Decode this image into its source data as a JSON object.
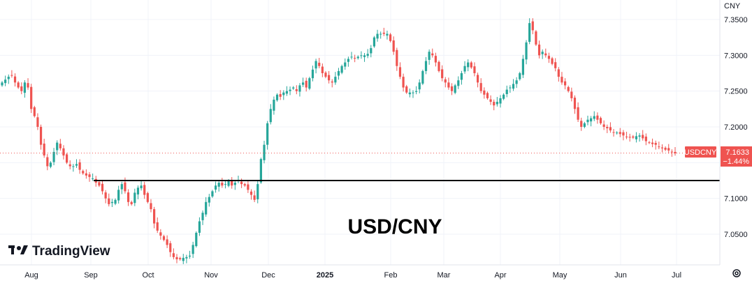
{
  "chart_data": {
    "type": "candlestick",
    "symbol": "USDCNY",
    "title": "USD/CNY",
    "currency": "CNY",
    "last_price": "7.1633",
    "change_pct": "−1.44%",
    "up_color": "#26a69a",
    "down_color": "#ef5350",
    "ylim": [
      7.005,
      7.36
    ],
    "y_ticks": [
      "7.3500",
      "7.3000",
      "7.2500",
      "7.2000",
      "7.1500",
      "7.1000",
      "7.0500"
    ],
    "x_labels": [
      "Aug",
      "Sep",
      "Oct",
      "Nov",
      "Dec",
      "2025",
      "Feb",
      "Mar",
      "Apr",
      "May",
      "Jun",
      "Jul"
    ],
    "x_bold": "2025",
    "horizontal_line": 7.125,
    "close_series": [
      7.262,
      7.266,
      7.27,
      7.272,
      7.262,
      7.255,
      7.25,
      7.262,
      7.255,
      7.225,
      7.215,
      7.2,
      7.175,
      7.16,
      7.145,
      7.15,
      7.165,
      7.178,
      7.17,
      7.16,
      7.15,
      7.145,
      7.145,
      7.148,
      7.14,
      7.135,
      7.132,
      7.13,
      7.128,
      7.122,
      7.118,
      7.11,
      7.1,
      7.092,
      7.095,
      7.098,
      7.112,
      7.12,
      7.11,
      7.095,
      7.092,
      7.108,
      7.115,
      7.118,
      7.105,
      7.095,
      7.085,
      7.065,
      7.055,
      7.048,
      7.042,
      7.035,
      7.025,
      7.018,
      7.015,
      7.015,
      7.017,
      7.018,
      7.02,
      7.035,
      7.052,
      7.068,
      7.08,
      7.095,
      7.102,
      7.11,
      7.118,
      7.122,
      7.118,
      7.12,
      7.125,
      7.118,
      7.122,
      7.125,
      7.12,
      7.118,
      7.112,
      7.105,
      7.098,
      7.12,
      7.155,
      7.175,
      7.205,
      7.225,
      7.238,
      7.245,
      7.242,
      7.248,
      7.25,
      7.252,
      7.255,
      7.25,
      7.258,
      7.262,
      7.255,
      7.268,
      7.28,
      7.292,
      7.285,
      7.275,
      7.27,
      7.265,
      7.262,
      7.27,
      7.278,
      7.285,
      7.29,
      7.295,
      7.298,
      7.296,
      7.298,
      7.3,
      7.3,
      7.302,
      7.31,
      7.325,
      7.33,
      7.33,
      7.33,
      7.33,
      7.32,
      7.305,
      7.285,
      7.27,
      7.255,
      7.248,
      7.248,
      7.248,
      7.25,
      7.262,
      7.278,
      7.292,
      7.305,
      7.3,
      7.29,
      7.278,
      7.268,
      7.262,
      7.255,
      7.25,
      7.258,
      7.265,
      7.275,
      7.285,
      7.29,
      7.283,
      7.275,
      7.262,
      7.25,
      7.245,
      7.24,
      7.235,
      7.23,
      7.235,
      7.24,
      7.245,
      7.252,
      7.255,
      7.26,
      7.265,
      7.275,
      7.295,
      7.318,
      7.345,
      7.335,
      7.315,
      7.3,
      7.305,
      7.3,
      7.295,
      7.288,
      7.282,
      7.27,
      7.262,
      7.258,
      7.25,
      7.24,
      7.225,
      7.21,
      7.2,
      7.205,
      7.21,
      7.212,
      7.215,
      7.21,
      7.205,
      7.2,
      7.198,
      7.195,
      7.192,
      7.192,
      7.19,
      7.188,
      7.186,
      7.185,
      7.185,
      7.187,
      7.188,
      7.184,
      7.18,
      7.178,
      7.176,
      7.175,
      7.172,
      7.17,
      7.168,
      7.167,
      7.165,
      7.163
    ]
  },
  "branding": {
    "logo_text": "TradingView"
  }
}
